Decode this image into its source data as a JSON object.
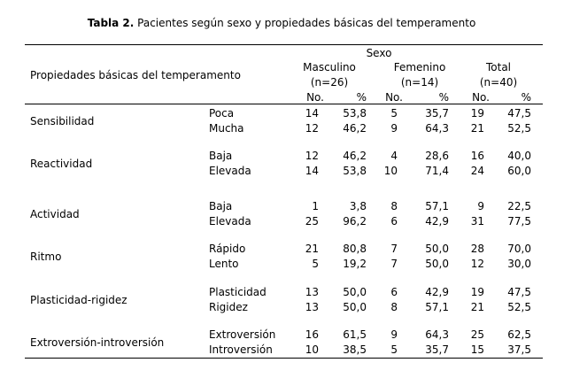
{
  "title": {
    "bold": "Tabla 2.",
    "rest": " Pacientes según sexo y propiedades básicas del temperamento"
  },
  "header": {
    "stub": "Propiedades básicas del temperamento",
    "sexo": "Sexo",
    "groups": [
      {
        "name": "Masculino",
        "n": "(n=26)"
      },
      {
        "name": "Femenino",
        "n": "(n=14)"
      },
      {
        "name": "Total",
        "n": "(n=40)"
      }
    ],
    "no": "No.",
    "pct": "%"
  },
  "rows": [
    {
      "category": "Sensibilidad",
      "items": [
        {
          "label": "Poca",
          "values": [
            "14",
            "53,8",
            "5",
            "35,7",
            "19",
            "47,5"
          ]
        },
        {
          "label": "Mucha",
          "values": [
            "12",
            "46,2",
            "9",
            "64,3",
            "21",
            "52,5"
          ]
        }
      ]
    },
    {
      "category": "Reactividad",
      "items": [
        {
          "label": "Baja",
          "values": [
            "12",
            "46,2",
            "4",
            "28,6",
            "16",
            "40,0"
          ]
        },
        {
          "label": "Elevada",
          "values": [
            "14",
            "53,8",
            "10",
            "71,4",
            "24",
            "60,0"
          ]
        }
      ]
    },
    {
      "category": "Actividad",
      "items": [
        {
          "label": "Baja",
          "values": [
            "1",
            "3,8",
            "8",
            "57,1",
            "9",
            "22,5"
          ]
        },
        {
          "label": "Elevada",
          "values": [
            "25",
            "96,2",
            "6",
            "42,9",
            "31",
            "77,5"
          ]
        }
      ]
    },
    {
      "category": "Ritmo",
      "items": [
        {
          "label": "Rápido",
          "values": [
            "21",
            "80,8",
            "7",
            "50,0",
            "28",
            "70,0"
          ]
        },
        {
          "label": "Lento",
          "values": [
            "5",
            "19,2",
            "7",
            "50,0",
            "12",
            "30,0"
          ]
        }
      ]
    },
    {
      "category": "Plasticidad-rigidez",
      "items": [
        {
          "label": "Plasticidad",
          "values": [
            "13",
            "50,0",
            "6",
            "42,9",
            "19",
            "47,5"
          ]
        },
        {
          "label": "Rigidez",
          "values": [
            "13",
            "50,0",
            "8",
            "57,1",
            "21",
            "52,5"
          ]
        }
      ]
    },
    {
      "category": "Extroversión-introversión",
      "items": [
        {
          "label": "Extroversión",
          "values": [
            "16",
            "61,5",
            "9",
            "64,3",
            "25",
            "62,5"
          ]
        },
        {
          "label": "Introversión",
          "values": [
            "10",
            "38,5",
            "5",
            "35,7",
            "15",
            "37,5"
          ]
        }
      ]
    }
  ]
}
